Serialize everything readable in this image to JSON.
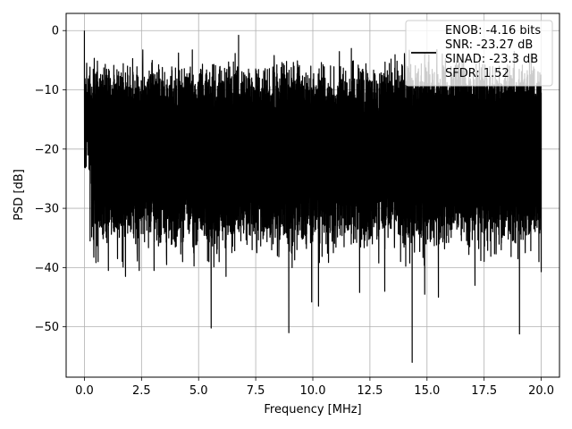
{
  "chart_data": {
    "type": "line",
    "xlabel": "Frequency [MHz]",
    "ylabel": "PSD [dB]",
    "xlim": [
      -0.8,
      20.8
    ],
    "ylim": [
      -58.5,
      2.9
    ],
    "xticks": [
      0.0,
      2.5,
      5.0,
      7.5,
      10.0,
      12.5,
      15.0,
      17.5,
      20.0
    ],
    "xtick_labels": [
      "0.0",
      "2.5",
      "5.0",
      "7.5",
      "10.0",
      "12.5",
      "15.0",
      "17.5",
      "20.0"
    ],
    "yticks": [
      0,
      -10,
      -20,
      -30,
      -40,
      -50
    ],
    "ytick_labels": [
      "0",
      "−10",
      "−20",
      "−30",
      "−40",
      "−50"
    ],
    "grid": true,
    "legend_position": "top-right",
    "series": [
      {
        "color": "#000000",
        "x_range": [
          0.0,
          20.0
        ],
        "points": [
          [
            0.0,
            0.0
          ],
          [
            0.02,
            -8.5
          ],
          [
            0.05,
            -22.0
          ],
          [
            0.1,
            -5.5
          ],
          [
            0.15,
            -21.0
          ],
          [
            0.2,
            -10.0
          ],
          [
            0.25,
            -35.5
          ],
          [
            0.3,
            -11.0
          ],
          [
            0.6,
            -39.0
          ],
          [
            1.05,
            -40.5
          ],
          [
            1.45,
            -38.5
          ],
          [
            1.8,
            -41.5
          ],
          [
            2.4,
            -40.5
          ],
          [
            3.05,
            -40.5
          ],
          [
            3.6,
            -39.5
          ],
          [
            4.3,
            -39.0
          ],
          [
            4.75,
            -36.5
          ],
          [
            5.45,
            -39.0
          ],
          [
            5.55,
            -50.2
          ],
          [
            5.9,
            -39.0
          ],
          [
            6.2,
            -41.5
          ],
          [
            6.75,
            -0.8
          ],
          [
            6.85,
            -35.5
          ],
          [
            7.25,
            -31.0
          ],
          [
            7.55,
            -37.5
          ],
          [
            8.2,
            -37.0
          ],
          [
            8.45,
            -38.0
          ],
          [
            8.95,
            -51.0
          ],
          [
            9.7,
            -36.0
          ],
          [
            9.95,
            -45.8
          ],
          [
            10.25,
            -46.5
          ],
          [
            10.55,
            -30.5
          ],
          [
            10.9,
            -37.5
          ],
          [
            11.2,
            -34.5
          ],
          [
            12.05,
            -44.2
          ],
          [
            13.15,
            -44.0
          ],
          [
            14.35,
            -56.0
          ],
          [
            14.9,
            -44.5
          ],
          [
            15.0,
            -25.0
          ],
          [
            15.5,
            -45.0
          ],
          [
            16.05,
            -6.5
          ],
          [
            16.4,
            -27.0
          ],
          [
            17.1,
            -43.0
          ],
          [
            17.5,
            -8.5
          ],
          [
            18.25,
            -37.0
          ],
          [
            19.05,
            -51.2
          ],
          [
            19.3,
            -37.5
          ],
          [
            19.9,
            -39.0
          ],
          [
            20.0,
            -40.7
          ]
        ]
      }
    ],
    "legend": {
      "lines": [
        "ENOB: -4.16 bits",
        "SNR: -23.27 dB",
        "SINAD: -23.3 dB",
        "SFDR: 1.52"
      ]
    }
  }
}
